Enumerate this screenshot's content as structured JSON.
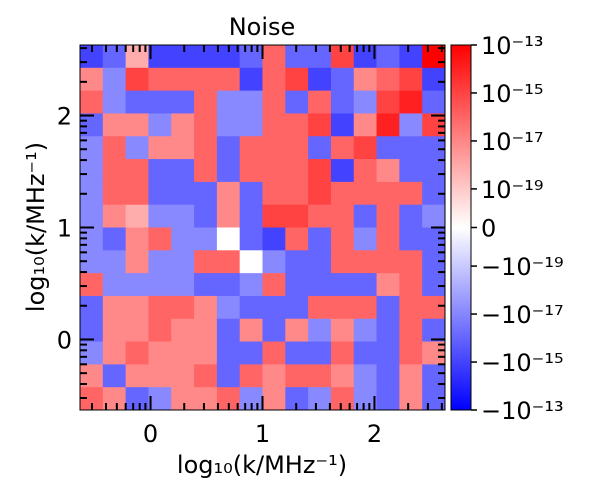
{
  "chart_data": {
    "type": "heatmap",
    "title": "Noise",
    "xlabel": "log₁₀(k/MHz⁻¹)",
    "ylabel": "log₁₀(k/MHz⁻¹)",
    "xlim": [
      -0.63,
      2.63
    ],
    "ylim": [
      -0.63,
      2.63
    ],
    "x_ticks": [
      {
        "value": 0,
        "label": "0"
      },
      {
        "value": 1,
        "label": "1"
      },
      {
        "value": 2,
        "label": "2"
      }
    ],
    "y_ticks": [
      {
        "value": 0,
        "label": "0"
      },
      {
        "value": 1,
        "label": "1"
      },
      {
        "value": 2,
        "label": "2"
      }
    ],
    "grid": false,
    "colormap": "bwr",
    "colorbar": {
      "scale": "symlog",
      "range": [
        -1e-13,
        1e-13
      ],
      "ticks": [
        {
          "value": 1e-13,
          "label": "10⁻¹³"
        },
        {
          "value": 1e-15,
          "label": "10⁻¹⁵"
        },
        {
          "value": 1e-17,
          "label": "10⁻¹⁷"
        },
        {
          "value": 1e-19,
          "label": "10⁻¹⁹"
        },
        {
          "value": 0,
          "label": "0"
        },
        {
          "value": -1e-19,
          "label": "−10⁻¹⁹"
        },
        {
          "value": -1e-17,
          "label": "−10⁻¹⁷"
        },
        {
          "value": -1e-15,
          "label": "−10⁻¹⁵"
        },
        {
          "value": -1e-13,
          "label": "−10⁻¹³"
        }
      ]
    },
    "grid_size": 16,
    "cell_values_log_signed_top_to_bottom": [
      [
        -15,
        -16,
        -18,
        -15,
        -15,
        -15,
        -15,
        -16,
        -16,
        -16,
        -16,
        -15,
        -15,
        -16,
        -15,
        -13
      ],
      [
        -17,
        -17,
        -15,
        -16,
        -16,
        -16,
        -16,
        -15,
        -16,
        -15,
        -15,
        -16,
        -17,
        -16,
        -15,
        -15
      ],
      [
        -16,
        -17,
        -16,
        -16,
        -16,
        -16,
        -17,
        -17,
        -16,
        -16,
        -16,
        -16,
        -17,
        -15,
        -14,
        -16
      ],
      [
        -16,
        -17,
        -17,
        -17,
        -17,
        -16,
        -17,
        -17,
        -16,
        -16,
        -15,
        -15,
        -17,
        -14,
        -17,
        -15
      ],
      [
        -17,
        -16,
        -17,
        -17,
        -17,
        -16,
        -16,
        -16,
        -16,
        -16,
        -16,
        -16,
        -15,
        -16,
        -16,
        -16
      ],
      [
        -17,
        -16,
        -16,
        -16,
        -16,
        -16,
        -16,
        -16,
        -16,
        -16,
        -15,
        -15,
        -16,
        -17,
        -16,
        -16
      ],
      [
        -17,
        -16,
        -16,
        -16,
        -16,
        -16,
        -17,
        -16,
        -16,
        -16,
        -15,
        -16,
        -16,
        -16,
        -16,
        -16
      ],
      [
        -17,
        -17,
        -18,
        -17,
        -17,
        -16,
        -17,
        -16,
        -15,
        -15,
        -16,
        -16,
        -16,
        -16,
        -16,
        -17
      ],
      [
        -17,
        -16,
        -17,
        -16,
        -17,
        -17,
        -20,
        -16,
        -15,
        -16,
        -16,
        -16,
        -17,
        -16,
        -16,
        -16
      ],
      [
        -17,
        -17,
        -17,
        -17,
        -17,
        -16,
        -16,
        -20,
        -17,
        -16,
        -16,
        -16,
        -16,
        -16,
        -16,
        -16
      ],
      [
        -16,
        -17,
        -17,
        -17,
        -17,
        -16,
        -16,
        -17,
        -16,
        -16,
        -16,
        -16,
        -16,
        -17,
        -16,
        -16
      ],
      [
        -16,
        -17,
        -17,
        -16,
        -16,
        -17,
        -17,
        -16,
        -16,
        -16,
        -16,
        -16,
        -16,
        -16,
        -16,
        -16
      ],
      [
        -16,
        -17,
        -17,
        -16,
        -17,
        -17,
        -16,
        -17,
        -16,
        -17,
        -17,
        -17,
        -17,
        -16,
        -16,
        -16
      ],
      [
        -17,
        -17,
        -16,
        -17,
        -17,
        -17,
        -16,
        -16,
        -16,
        -16,
        -16,
        -16,
        -16,
        -16,
        -16,
        -17
      ],
      [
        -17,
        -16,
        -17,
        -17,
        -17,
        -16,
        -16,
        -16,
        -17,
        -16,
        -16,
        -17,
        -17,
        -16,
        -17,
        -16
      ],
      [
        -16,
        -17,
        -16,
        -17,
        -17,
        -17,
        -16,
        -17,
        -17,
        -16,
        -17,
        -16,
        -17,
        -16,
        -17,
        -16
      ]
    ],
    "cell_signs_top_to_bottom": [
      [
        -1,
        -1,
        1,
        -1,
        -1,
        -1,
        -1,
        -1,
        1,
        -1,
        -1,
        1,
        -1,
        -1,
        -1,
        1
      ],
      [
        1,
        -1,
        1,
        1,
        1,
        1,
        1,
        -1,
        1,
        1,
        -1,
        -1,
        1,
        1,
        1,
        -1
      ],
      [
        1,
        -1,
        -1,
        -1,
        -1,
        1,
        -1,
        -1,
        1,
        -1,
        1,
        -1,
        -1,
        1,
        1,
        -1
      ],
      [
        -1,
        1,
        1,
        -1,
        1,
        1,
        -1,
        -1,
        1,
        1,
        1,
        -1,
        1,
        1,
        -1,
        1
      ],
      [
        -1,
        1,
        -1,
        1,
        1,
        1,
        -1,
        1,
        1,
        1,
        -1,
        1,
        1,
        -1,
        -1,
        -1
      ],
      [
        -1,
        1,
        1,
        -1,
        -1,
        1,
        -1,
        1,
        1,
        1,
        1,
        -1,
        1,
        1,
        -1,
        -1
      ],
      [
        -1,
        1,
        1,
        -1,
        -1,
        -1,
        1,
        -1,
        1,
        1,
        1,
        1,
        1,
        1,
        1,
        -1
      ],
      [
        -1,
        1,
        1,
        -1,
        -1,
        -1,
        1,
        -1,
        1,
        1,
        1,
        1,
        -1,
        1,
        -1,
        -1
      ],
      [
        -1,
        -1,
        1,
        1,
        -1,
        -1,
        -1,
        -1,
        -1,
        1,
        -1,
        1,
        -1,
        1,
        -1,
        -1
      ],
      [
        -1,
        -1,
        1,
        -1,
        -1,
        1,
        1,
        -1,
        -1,
        -1,
        -1,
        1,
        1,
        1,
        1,
        -1
      ],
      [
        1,
        -1,
        -1,
        -1,
        -1,
        -1,
        -1,
        -1,
        1,
        -1,
        -1,
        -1,
        -1,
        1,
        1,
        -1
      ],
      [
        -1,
        1,
        1,
        1,
        1,
        1,
        -1,
        -1,
        -1,
        -1,
        1,
        1,
        1,
        -1,
        1,
        1
      ],
      [
        -1,
        1,
        1,
        1,
        1,
        1,
        -1,
        1,
        -1,
        1,
        -1,
        1,
        -1,
        -1,
        1,
        -1
      ],
      [
        -1,
        1,
        1,
        1,
        1,
        1,
        -1,
        -1,
        1,
        -1,
        -1,
        1,
        -1,
        -1,
        1,
        1
      ],
      [
        1,
        -1,
        1,
        1,
        1,
        1,
        -1,
        1,
        1,
        1,
        1,
        1,
        -1,
        -1,
        1,
        -1
      ],
      [
        1,
        1,
        -1,
        -1,
        1,
        1,
        1,
        -1,
        1,
        -1,
        -1,
        1,
        -1,
        -1,
        1,
        -1
      ]
    ]
  }
}
